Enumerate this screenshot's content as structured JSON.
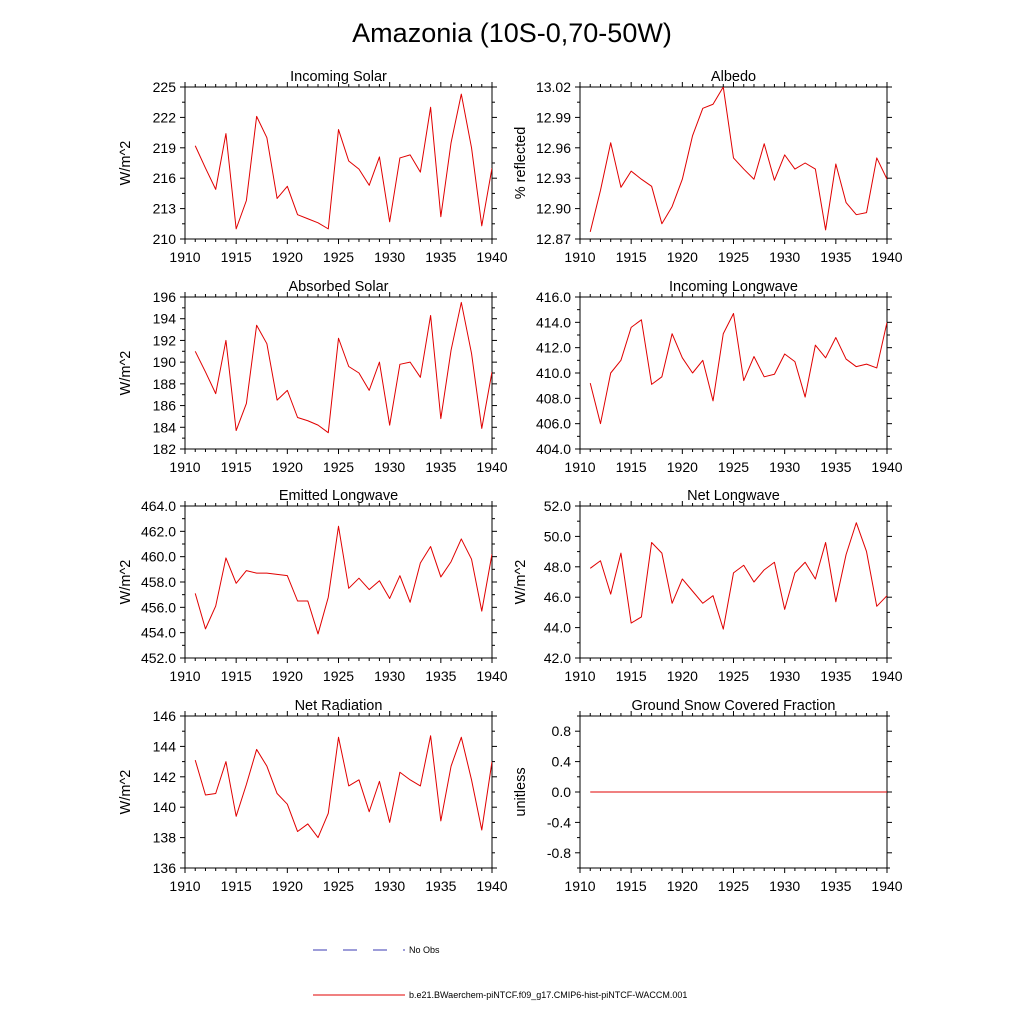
{
  "figure_title": "Amazonia (10S-0,70-50W)",
  "legend": [
    {
      "label": "No Obs",
      "color": "#3b3bb3",
      "style": "dashed"
    },
    {
      "label": "b.e21.BWaerchem-piNTCF.f09_g17.CMIP6-hist-piNTCF-WACCM.001",
      "color": "#e00000",
      "style": "solid"
    }
  ],
  "chart_data": [
    {
      "type": "line",
      "title": "Incoming Solar",
      "ylabel": "W/m^2",
      "xlim": [
        1910,
        1940
      ],
      "ylim": [
        210,
        225
      ],
      "xticks": [
        1910,
        1915,
        1920,
        1925,
        1930,
        1935,
        1940
      ],
      "yticks": [
        "210",
        "213",
        "216",
        "219",
        "222",
        "225"
      ],
      "x": [
        1911,
        1912,
        1913,
        1914,
        1915,
        1916,
        1917,
        1918,
        1919,
        1920,
        1921,
        1922,
        1923,
        1924,
        1925,
        1926,
        1927,
        1928,
        1929,
        1930,
        1931,
        1932,
        1933,
        1934,
        1935,
        1936,
        1937,
        1938,
        1939,
        1940
      ],
      "series": [
        {
          "color": "#e00000",
          "values": [
            219.2,
            217.0,
            214.9,
            220.4,
            211.0,
            213.8,
            222.1,
            220.0,
            214.0,
            215.2,
            212.4,
            212.0,
            211.6,
            211.0,
            220.8,
            217.7,
            216.9,
            215.3,
            218.1,
            211.7,
            218.0,
            218.3,
            216.6,
            223.0,
            212.2,
            219.5,
            224.3,
            219.0,
            211.3,
            217.0
          ]
        }
      ]
    },
    {
      "type": "line",
      "title": "Albedo",
      "ylabel": "% reflected",
      "xlim": [
        1910,
        1940
      ],
      "ylim": [
        12.87,
        13.02
      ],
      "xticks": [
        1910,
        1915,
        1920,
        1925,
        1930,
        1935,
        1940
      ],
      "yticks": [
        "12.87",
        "12.90",
        "12.93",
        "12.96",
        "12.99",
        "13.02"
      ],
      "x": [
        1911,
        1912,
        1913,
        1914,
        1915,
        1916,
        1917,
        1918,
        1919,
        1920,
        1921,
        1922,
        1923,
        1924,
        1925,
        1926,
        1927,
        1928,
        1929,
        1930,
        1931,
        1932,
        1933,
        1934,
        1935,
        1936,
        1937,
        1938,
        1939,
        1940
      ],
      "series": [
        {
          "color": "#e00000",
          "values": [
            12.877,
            12.918,
            12.965,
            12.921,
            12.937,
            12.929,
            12.922,
            12.885,
            12.902,
            12.929,
            12.972,
            12.999,
            13.003,
            13.02,
            12.95,
            12.939,
            12.929,
            12.964,
            12.928,
            12.953,
            12.939,
            12.945,
            12.939,
            12.879,
            12.944,
            12.906,
            12.894,
            12.896,
            12.95,
            12.929
          ]
        }
      ]
    },
    {
      "type": "line",
      "title": "Absorbed Solar",
      "ylabel": "W/m^2",
      "xlim": [
        1910,
        1940
      ],
      "ylim": [
        182,
        196
      ],
      "xticks": [
        1910,
        1915,
        1920,
        1925,
        1930,
        1935,
        1940
      ],
      "yticks": [
        "182",
        "184",
        "186",
        "188",
        "190",
        "192",
        "194",
        "196"
      ],
      "x": [
        1911,
        1912,
        1913,
        1914,
        1915,
        1916,
        1917,
        1918,
        1919,
        1920,
        1921,
        1922,
        1923,
        1924,
        1925,
        1926,
        1927,
        1928,
        1929,
        1930,
        1931,
        1932,
        1933,
        1934,
        1935,
        1936,
        1937,
        1938,
        1939,
        1940
      ],
      "series": [
        {
          "color": "#e00000",
          "values": [
            191.0,
            189.1,
            187.1,
            192.0,
            183.7,
            186.2,
            193.4,
            191.7,
            186.5,
            187.4,
            184.9,
            184.6,
            184.2,
            183.5,
            192.2,
            189.6,
            189.0,
            187.4,
            190.0,
            184.2,
            189.8,
            190.0,
            188.6,
            194.3,
            184.8,
            191.1,
            195.5,
            190.8,
            183.9,
            189.1
          ]
        }
      ]
    },
    {
      "type": "line",
      "title": "Incoming Longwave",
      "ylabel": "",
      "xlim": [
        1910,
        1940
      ],
      "ylim": [
        404,
        416
      ],
      "xticks": [
        1910,
        1915,
        1920,
        1925,
        1930,
        1935,
        1940
      ],
      "yticks": [
        "404.0",
        "406.0",
        "408.0",
        "410.0",
        "412.0",
        "414.0",
        "416.0"
      ],
      "x": [
        1911,
        1912,
        1913,
        1914,
        1915,
        1916,
        1917,
        1918,
        1919,
        1920,
        1921,
        1922,
        1923,
        1924,
        1925,
        1926,
        1927,
        1928,
        1929,
        1930,
        1931,
        1932,
        1933,
        1934,
        1935,
        1936,
        1937,
        1938,
        1939,
        1940
      ],
      "series": [
        {
          "color": "#e00000",
          "values": [
            409.2,
            406.0,
            410.0,
            411.0,
            413.6,
            414.2,
            409.1,
            409.7,
            413.1,
            411.2,
            410.0,
            411.0,
            407.8,
            413.1,
            414.7,
            409.4,
            411.3,
            409.7,
            409.9,
            411.5,
            410.9,
            408.1,
            412.2,
            411.2,
            412.8,
            411.1,
            410.5,
            410.7,
            410.4,
            414.0
          ]
        }
      ]
    },
    {
      "type": "line",
      "title": "Emitted Longwave",
      "ylabel": "W/m^2",
      "xlim": [
        1910,
        1940
      ],
      "ylim": [
        452,
        464
      ],
      "xticks": [
        1910,
        1915,
        1920,
        1925,
        1930,
        1935,
        1940
      ],
      "yticks": [
        "452.0",
        "454.0",
        "456.0",
        "458.0",
        "460.0",
        "462.0",
        "464.0"
      ],
      "x": [
        1911,
        1912,
        1913,
        1914,
        1915,
        1916,
        1917,
        1918,
        1919,
        1920,
        1921,
        1922,
        1923,
        1924,
        1925,
        1926,
        1927,
        1928,
        1929,
        1930,
        1931,
        1932,
        1933,
        1934,
        1935,
        1936,
        1937,
        1938,
        1939,
        1940
      ],
      "series": [
        {
          "color": "#e00000",
          "values": [
            457.1,
            454.3,
            456.1,
            459.9,
            457.9,
            458.9,
            458.7,
            458.7,
            458.6,
            458.5,
            456.5,
            456.5,
            453.9,
            456.8,
            462.4,
            457.5,
            458.3,
            457.4,
            458.1,
            456.7,
            458.5,
            456.4,
            459.5,
            460.8,
            458.4,
            459.6,
            461.4,
            459.8,
            455.7,
            460.2
          ]
        }
      ]
    },
    {
      "type": "line",
      "title": "Net Longwave",
      "ylabel": "W/m^2",
      "xlim": [
        1910,
        1940
      ],
      "ylim": [
        42,
        52
      ],
      "xticks": [
        1910,
        1915,
        1920,
        1925,
        1930,
        1935,
        1940
      ],
      "yticks": [
        "42.0",
        "44.0",
        "46.0",
        "48.0",
        "50.0",
        "52.0"
      ],
      "x": [
        1911,
        1912,
        1913,
        1914,
        1915,
        1916,
        1917,
        1918,
        1919,
        1920,
        1921,
        1922,
        1923,
        1924,
        1925,
        1926,
        1927,
        1928,
        1929,
        1930,
        1931,
        1932,
        1933,
        1934,
        1935,
        1936,
        1937,
        1938,
        1939,
        1940
      ],
      "series": [
        {
          "color": "#e00000",
          "values": [
            47.9,
            48.4,
            46.2,
            48.9,
            44.3,
            44.7,
            49.6,
            48.9,
            45.6,
            47.2,
            46.4,
            45.6,
            46.1,
            43.9,
            47.6,
            48.1,
            47.0,
            47.8,
            48.3,
            45.2,
            47.6,
            48.3,
            47.2,
            49.6,
            45.7,
            48.8,
            50.9,
            49.0,
            45.4,
            46.1
          ]
        }
      ]
    },
    {
      "type": "line",
      "title": "Net Radiation",
      "ylabel": "W/m^2",
      "xlim": [
        1910,
        1940
      ],
      "ylim": [
        136,
        146
      ],
      "xticks": [
        1910,
        1915,
        1920,
        1925,
        1930,
        1935,
        1940
      ],
      "yticks": [
        "136",
        "138",
        "140",
        "142",
        "144",
        "146"
      ],
      "x": [
        1911,
        1912,
        1913,
        1914,
        1915,
        1916,
        1917,
        1918,
        1919,
        1920,
        1921,
        1922,
        1923,
        1924,
        1925,
        1926,
        1927,
        1928,
        1929,
        1930,
        1931,
        1932,
        1933,
        1934,
        1935,
        1936,
        1937,
        1938,
        1939,
        1940
      ],
      "series": [
        {
          "color": "#e00000",
          "values": [
            143.1,
            140.8,
            140.9,
            143.0,
            139.4,
            141.5,
            143.8,
            142.7,
            140.9,
            140.2,
            138.4,
            138.9,
            138.0,
            139.6,
            144.6,
            141.4,
            141.8,
            139.7,
            141.7,
            139.0,
            142.3,
            141.8,
            141.4,
            144.7,
            139.1,
            142.7,
            144.6,
            141.8,
            138.5,
            143.0
          ]
        }
      ]
    },
    {
      "type": "line",
      "title": "Ground Snow Covered Fraction",
      "ylabel": "unitless",
      "xlim": [
        1910,
        1940
      ],
      "ylim": [
        -1.0,
        1.0
      ],
      "xticks": [
        1910,
        1915,
        1920,
        1925,
        1930,
        1935,
        1940
      ],
      "yticks": [
        "-0.8",
        "-0.4",
        "0.0",
        "0.4",
        "0.8"
      ],
      "x": [
        1911,
        1912,
        1913,
        1914,
        1915,
        1916,
        1917,
        1918,
        1919,
        1920,
        1921,
        1922,
        1923,
        1924,
        1925,
        1926,
        1927,
        1928,
        1929,
        1930,
        1931,
        1932,
        1933,
        1934,
        1935,
        1936,
        1937,
        1938,
        1939,
        1940
      ],
      "series": [
        {
          "color": "#e00000",
          "values": [
            0,
            0,
            0,
            0,
            0,
            0,
            0,
            0,
            0,
            0,
            0,
            0,
            0,
            0,
            0,
            0,
            0,
            0,
            0,
            0,
            0,
            0,
            0,
            0,
            0,
            0,
            0,
            0,
            0,
            0
          ]
        }
      ]
    }
  ]
}
